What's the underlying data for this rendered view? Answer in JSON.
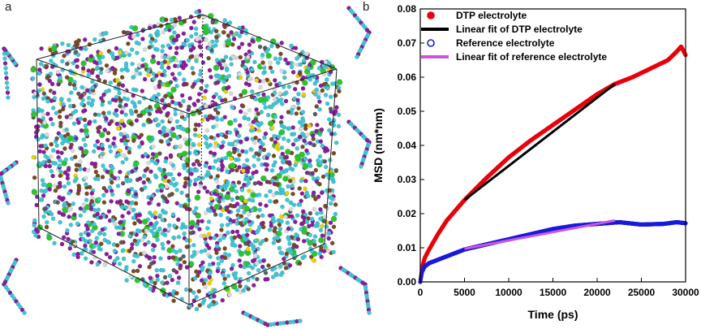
{
  "panel_labels": {
    "a": "a",
    "b": "b"
  },
  "panel_a": {
    "atom_colors": [
      "#3fc6d6",
      "#8a1d9c",
      "#7a4a22",
      "#2ec42e",
      "#d9d9d9",
      "#e8d200",
      "#5a5a5a"
    ]
  },
  "chart_data": {
    "type": "line",
    "title": "",
    "xlabel": "Time (ps)",
    "ylabel": "MSD (nm*nm)",
    "xlim": [
      0,
      30000
    ],
    "ylim": [
      0,
      0.08
    ],
    "x_ticks": [
      "0",
      "5000",
      "10000",
      "15000",
      "20000",
      "25000",
      "30000"
    ],
    "y_ticks": [
      "0.00",
      "0.01",
      "0.02",
      "0.03",
      "0.04",
      "0.05",
      "0.06",
      "0.07",
      "0.08"
    ],
    "x_tick_values": [
      0,
      5000,
      10000,
      15000,
      20000,
      25000,
      30000
    ],
    "y_tick_values": [
      0,
      0.01,
      0.02,
      0.03,
      0.04,
      0.05,
      0.06,
      0.07,
      0.08
    ],
    "legend_position": "top-left",
    "series": [
      {
        "name": "DTP electrolyte",
        "kind": "markers",
        "color": "#e8000b",
        "x": [
          0,
          200,
          500,
          1000,
          2000,
          3000,
          4000,
          5000,
          7500,
          10000,
          12500,
          15000,
          17500,
          20000,
          22000,
          24000,
          26000,
          28000,
          29000,
          29500,
          30000
        ],
        "y": [
          0.0,
          0.004,
          0.007,
          0.0095,
          0.014,
          0.018,
          0.021,
          0.024,
          0.0305,
          0.0365,
          0.0415,
          0.046,
          0.0505,
          0.055,
          0.058,
          0.06,
          0.0625,
          0.065,
          0.0675,
          0.069,
          0.0665
        ]
      },
      {
        "name": "Linear fit of DTP electrolyte",
        "kind": "line",
        "color": "#000000",
        "x": [
          5000,
          22000
        ],
        "y": [
          0.024,
          0.058
        ]
      },
      {
        "name": "Reference electrolyte",
        "kind": "markers",
        "color": "#1a1adb",
        "x": [
          0,
          200,
          500,
          1000,
          2000,
          3000,
          4000,
          5000,
          7500,
          10000,
          12500,
          15000,
          17500,
          20000,
          22500,
          25000,
          27500,
          29000,
          30000
        ],
        "y": [
          0.0,
          0.003,
          0.0045,
          0.0055,
          0.0065,
          0.0075,
          0.0085,
          0.0095,
          0.011,
          0.0125,
          0.014,
          0.0155,
          0.0165,
          0.017,
          0.0175,
          0.0168,
          0.017,
          0.0175,
          0.0172
        ]
      },
      {
        "name": "Linear fit of reference electrolyte",
        "kind": "line",
        "color": "#cc55e0",
        "x": [
          5000,
          22000
        ],
        "y": [
          0.0097,
          0.018
        ]
      }
    ]
  }
}
